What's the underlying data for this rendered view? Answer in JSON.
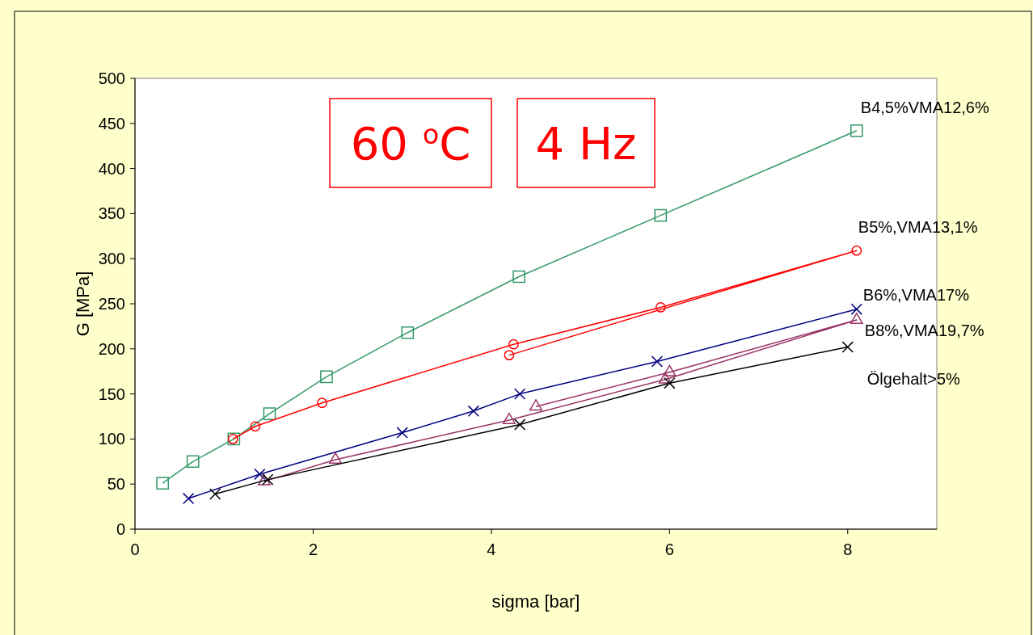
{
  "chart_data": {
    "type": "line",
    "xlabel": "sigma [bar]",
    "ylabel": "G [MPa]",
    "xlim": [
      0,
      9
    ],
    "ylim": [
      0,
      500
    ],
    "xticks": [
      0,
      2,
      4,
      6,
      8
    ],
    "yticks": [
      0,
      50,
      100,
      150,
      200,
      250,
      300,
      350,
      400,
      450,
      500
    ],
    "grid": false,
    "annotations": [
      "60 $^{o}$C",
      "4 Hz"
    ],
    "series": [
      {
        "name": "B4,5%VMA12,6%",
        "color": "#339966",
        "marker": "square",
        "x": [
          0.31,
          0.65,
          1.11,
          1.51,
          2.15,
          3.06,
          4.31,
          5.9,
          8.1
        ],
        "values": [
          51,
          75,
          100,
          128,
          169,
          218,
          280,
          348,
          442
        ]
      },
      {
        "name": "B5%,VMA13,1%",
        "color": "#ff0000",
        "marker": "circle",
        "x": [
          1.1,
          1.35,
          2.1,
          4.25,
          5.9,
          8.1,
          4.2
        ],
        "values": [
          100,
          114,
          140,
          205,
          246,
          309,
          193
        ]
      },
      {
        "name": "B6%,VMA17%",
        "color": "#000080",
        "marker": "cross",
        "x": [
          0.6,
          1.4,
          3.0,
          3.8,
          4.32,
          5.86,
          8.1
        ],
        "values": [
          34,
          61,
          107,
          131,
          150,
          186,
          244
        ]
      },
      {
        "name": "B8%,VMA19,7%",
        "color": "#993366",
        "marker": "triangle",
        "x": [
          1.45,
          2.25,
          4.2,
          5.95,
          8.1,
          6.0,
          4.5
        ],
        "values": [
          53,
          77,
          121,
          166,
          232,
          174,
          136
        ]
      },
      {
        "name": "Ölgehalt>5%",
        "color": "#000000",
        "marker": "cross",
        "x": [
          0.9,
          1.49,
          4.32,
          6.0,
          8.0
        ],
        "values": [
          39,
          55,
          116,
          162,
          202
        ]
      }
    ]
  }
}
